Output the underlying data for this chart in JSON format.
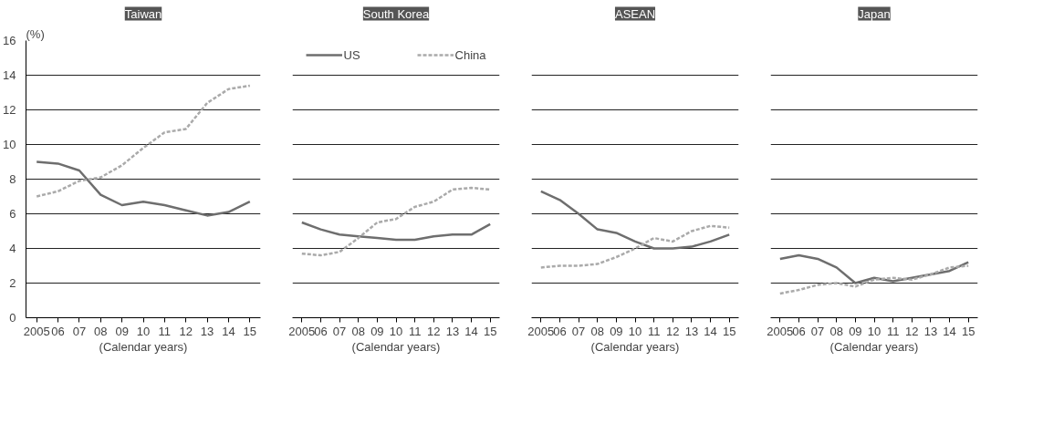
{
  "chart_data": [
    {
      "type": "line",
      "title": "Taiwan",
      "ylabel": "(%)",
      "xlabel": "(Calendar years)",
      "categories": [
        "2005",
        "06",
        "07",
        "08",
        "09",
        "10",
        "11",
        "12",
        "13",
        "14",
        "15"
      ],
      "ylim": [
        0,
        16
      ],
      "yticks": [
        0,
        2,
        4,
        6,
        8,
        10,
        12,
        14,
        16
      ],
      "grid": "y",
      "series": [
        {
          "color": "#6e6e6e",
          "line_style": "solid",
          "values": [
            9.0,
            8.9,
            8.5,
            7.1,
            6.5,
            6.7,
            6.5,
            6.2,
            5.9,
            6.1,
            6.7
          ]
        },
        {
          "color": "#aaaaaa",
          "line_style": "dashed",
          "values": [
            7.0,
            7.3,
            7.9,
            8.1,
            8.8,
            9.8,
            10.7,
            10.9,
            12.4,
            13.2,
            13.4
          ]
        }
      ]
    },
    {
      "type": "line",
      "title": "South Korea",
      "xlabel": "(Calendar years)",
      "categories": [
        "2005",
        "06",
        "07",
        "08",
        "09",
        "10",
        "11",
        "12",
        "13",
        "14",
        "15"
      ],
      "ylim": [
        0,
        16
      ],
      "yticks": [
        0,
        2,
        4,
        6,
        8,
        10,
        12,
        14,
        16
      ],
      "grid": "y",
      "tick_labels": "x",
      "legend": "top",
      "series": [
        {
          "name": "US",
          "color": "#6e6e6e",
          "line_style": "solid",
          "values": [
            5.5,
            5.1,
            4.8,
            4.7,
            4.6,
            4.5,
            4.5,
            4.7,
            4.8,
            4.8,
            5.4
          ]
        },
        {
          "name": "China",
          "color": "#aaaaaa",
          "line_style": "dashed",
          "values": [
            3.7,
            3.6,
            3.8,
            4.6,
            5.5,
            5.7,
            6.4,
            6.7,
            7.4,
            7.5,
            7.4
          ]
        }
      ]
    },
    {
      "type": "line",
      "title": "ASEAN",
      "xlabel": "(Calendar years)",
      "categories": [
        "2005",
        "06",
        "07",
        "08",
        "09",
        "10",
        "11",
        "12",
        "13",
        "14",
        "15"
      ],
      "ylim": [
        0,
        16
      ],
      "yticks": [
        0,
        2,
        4,
        6,
        8,
        10,
        12,
        14,
        16
      ],
      "grid": "y",
      "tick_labels": "x",
      "series": [
        {
          "color": "#6e6e6e",
          "line_style": "solid",
          "values": [
            7.3,
            6.8,
            6.0,
            5.1,
            4.9,
            4.4,
            4.0,
            4.0,
            4.1,
            4.4,
            4.8
          ]
        },
        {
          "color": "#aaaaaa",
          "line_style": "dashed",
          "values": [
            2.9,
            3.0,
            3.0,
            3.1,
            3.5,
            4.0,
            4.6,
            4.4,
            5.0,
            5.3,
            5.2
          ]
        }
      ]
    },
    {
      "type": "line",
      "title": "Japan",
      "xlabel": "(Calendar years)",
      "categories": [
        "2005",
        "06",
        "07",
        "08",
        "09",
        "10",
        "11",
        "12",
        "13",
        "14",
        "15"
      ],
      "ylim": [
        0,
        16
      ],
      "yticks": [
        0,
        2,
        4,
        6,
        8,
        10,
        12,
        14,
        16
      ],
      "grid": "y",
      "tick_labels": "x",
      "series": [
        {
          "color": "#6e6e6e",
          "line_style": "solid",
          "values": [
            3.4,
            3.6,
            3.4,
            2.9,
            2.0,
            2.3,
            2.1,
            2.3,
            2.5,
            2.7,
            3.2
          ]
        },
        {
          "color": "#aaaaaa",
          "line_style": "dashed",
          "values": [
            1.4,
            1.6,
            1.9,
            2.0,
            1.8,
            2.2,
            2.3,
            2.2,
            2.5,
            2.9,
            3.0
          ]
        }
      ]
    }
  ]
}
